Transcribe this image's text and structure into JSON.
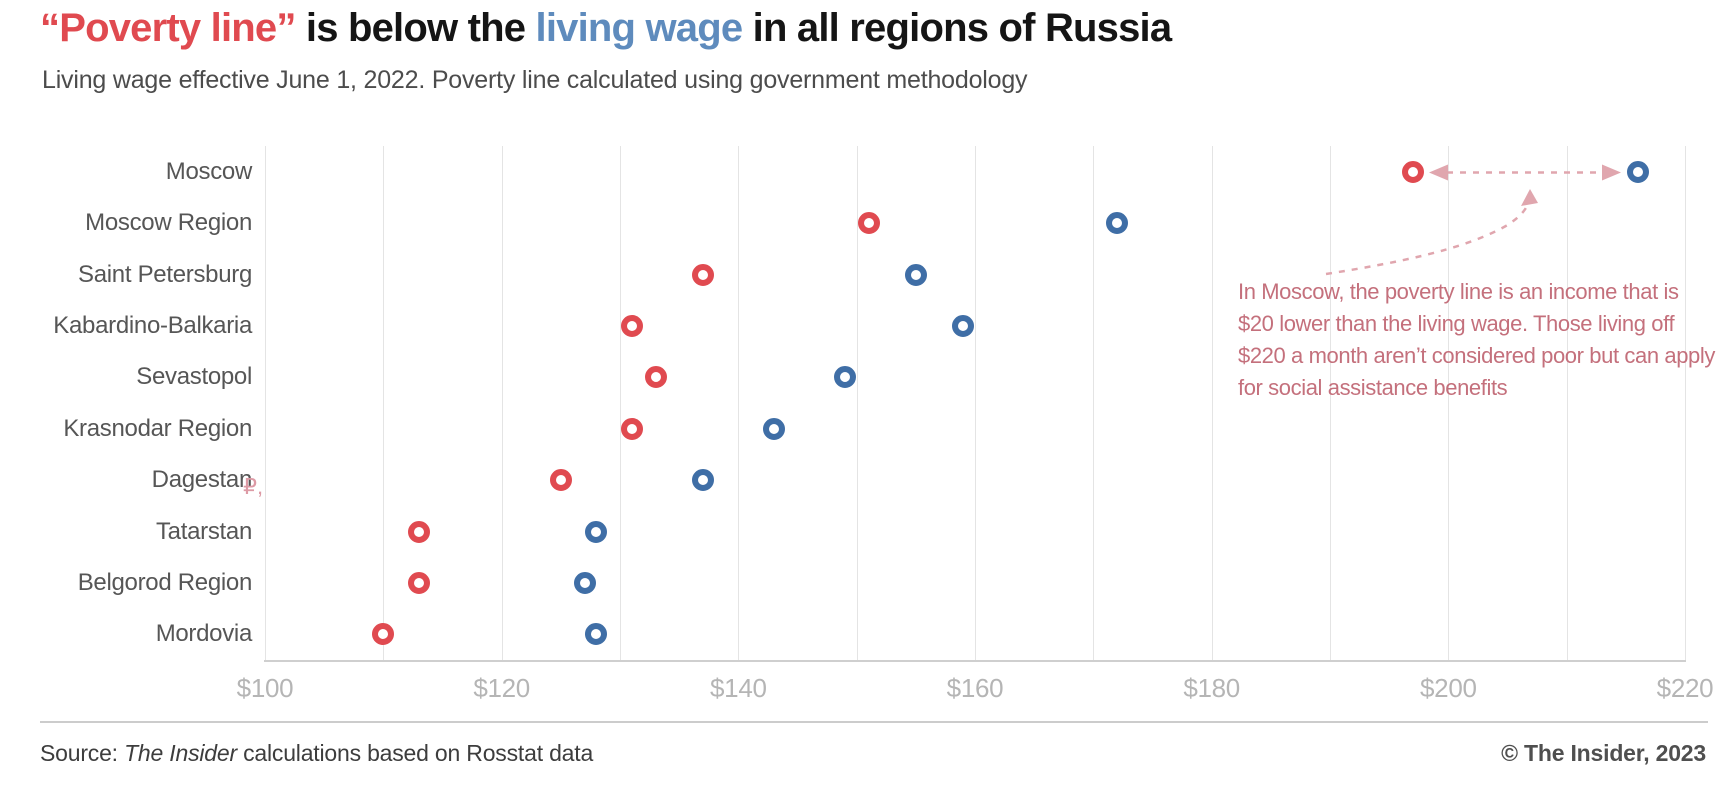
{
  "header": {
    "title_poverty": "“Poverty line”",
    "title_mid": " is below the ",
    "title_living": "living wage",
    "title_rest": " in all regions of Russia",
    "subtitle": "Living wage effective June 1, 2022. Poverty line calculated using government methodology"
  },
  "annotation": {
    "text": "In Moscow, the poverty line is an income that is\n$20 lower than the living wage. Those living off\n$220 a month aren’t considered poor but can apply\nfor social assistance benefits"
  },
  "stray_mark": "₽,",
  "footer": {
    "source_prefix": "Source: ",
    "source_publisher": "The Insider",
    "source_suffix": " calculations based on Rosstat data",
    "copyright": "© The Insider, 2023"
  },
  "colors": {
    "poverty_red": "#e04a50",
    "living_blue": "#3f6ea6",
    "title_blue": "#5e8bbd",
    "annotation_rose": "#c4707c",
    "arrow_rose": "#e0a6ae",
    "grid": "#e4e4e4",
    "axis_line": "#cfcfcf",
    "tick_label": "#b5b5b5",
    "category_label": "#565656"
  },
  "chart_data": {
    "type": "scatter",
    "title": "“Poverty line” is below the living wage in all regions of Russia",
    "subtitle": "Living wage effective June 1, 2022. Poverty line calculated using government methodology",
    "x_unit": "USD per month",
    "xlim": [
      100,
      220
    ],
    "x_grid_step": 10,
    "x_label_step": 20,
    "x_tick_labels": [
      "$100",
      "$120",
      "$140",
      "$160",
      "$180",
      "$200",
      "$220"
    ],
    "grid": "vertical-only",
    "legend_position": "encoded-in-title-colors",
    "categories": [
      "Moscow",
      "Moscow Region",
      "Saint Petersburg",
      "Kabardino-Balkaria",
      "Sevastopol",
      "Krasnodar Region",
      "Dagestan",
      "Tatarstan",
      "Belgorod Region",
      "Mordovia"
    ],
    "series": [
      {
        "name": "Poverty line",
        "color": "#e04a50",
        "values": [
          197,
          151,
          137,
          131,
          133,
          131,
          125,
          113,
          113,
          110
        ]
      },
      {
        "name": "Living wage",
        "color": "#3f6ea6",
        "values": [
          216,
          172,
          155,
          159,
          149,
          143,
          137,
          128,
          127,
          128
        ]
      }
    ]
  }
}
